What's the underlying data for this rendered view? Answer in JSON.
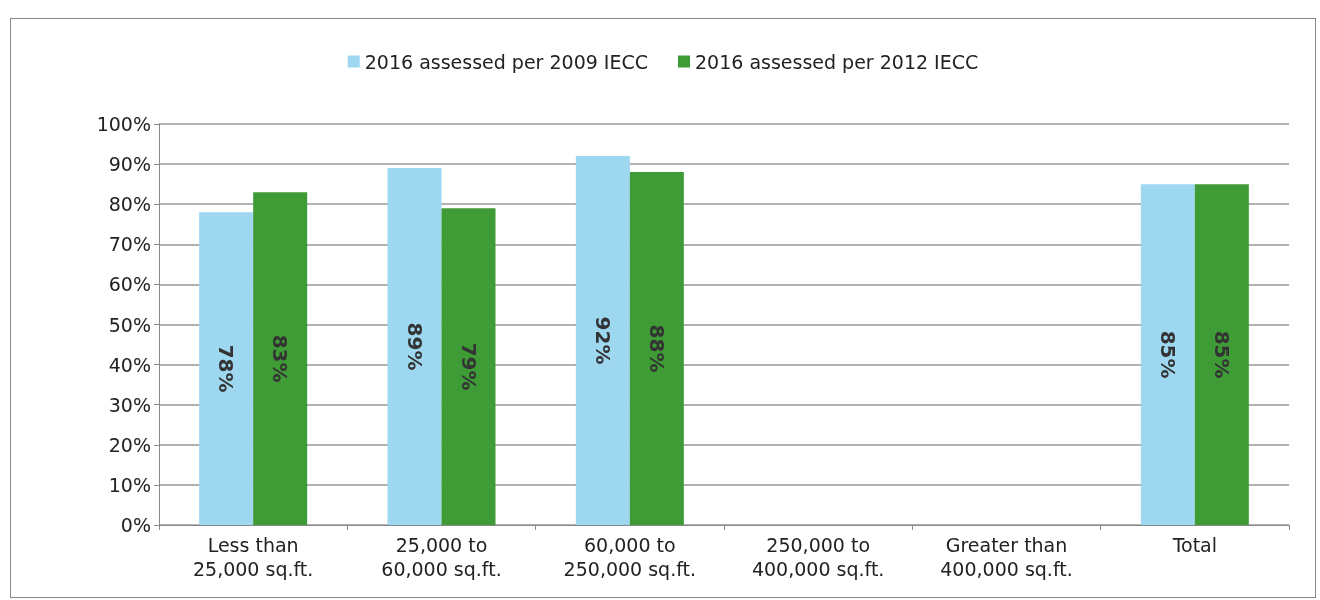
{
  "chart_data": {
    "type": "bar",
    "categories": [
      "Less than 25,000 sq.ft.",
      "25,000 to 60,000 sq.ft.",
      "60,000 to 250,000 sq.ft.",
      "250,000 to 400,000 sq.ft.",
      "Greater than 400,000 sq.ft.",
      "Total"
    ],
    "series": [
      {
        "name": "2016 assessed per 2009 IECC",
        "color": "#9dd7f0",
        "values": [
          78,
          89,
          92,
          null,
          null,
          85
        ],
        "value_labels": [
          "78%",
          "89%",
          "92%",
          null,
          null,
          "85%"
        ]
      },
      {
        "name": "2016 assessed per 2012 IECC",
        "color": "#3f9b35",
        "values": [
          83,
          79,
          88,
          null,
          null,
          85
        ],
        "value_labels": [
          "83%",
          "79%",
          "88%",
          null,
          null,
          "85%"
        ]
      }
    ],
    "ylim": [
      0,
      100
    ],
    "yticks": [
      {
        "value": 0,
        "label": "0%"
      },
      {
        "value": 10,
        "label": "10%"
      },
      {
        "value": 20,
        "label": "20%"
      },
      {
        "value": 30,
        "label": "30%"
      },
      {
        "value": 40,
        "label": "40%"
      },
      {
        "value": 50,
        "label": "50%"
      },
      {
        "value": 60,
        "label": "60%"
      },
      {
        "value": 70,
        "label": "70%"
      },
      {
        "value": 80,
        "label": "80%"
      },
      {
        "value": 90,
        "label": "90%"
      },
      {
        "value": 100,
        "label": "100%"
      }
    ],
    "grid": "y",
    "legend": "top"
  }
}
